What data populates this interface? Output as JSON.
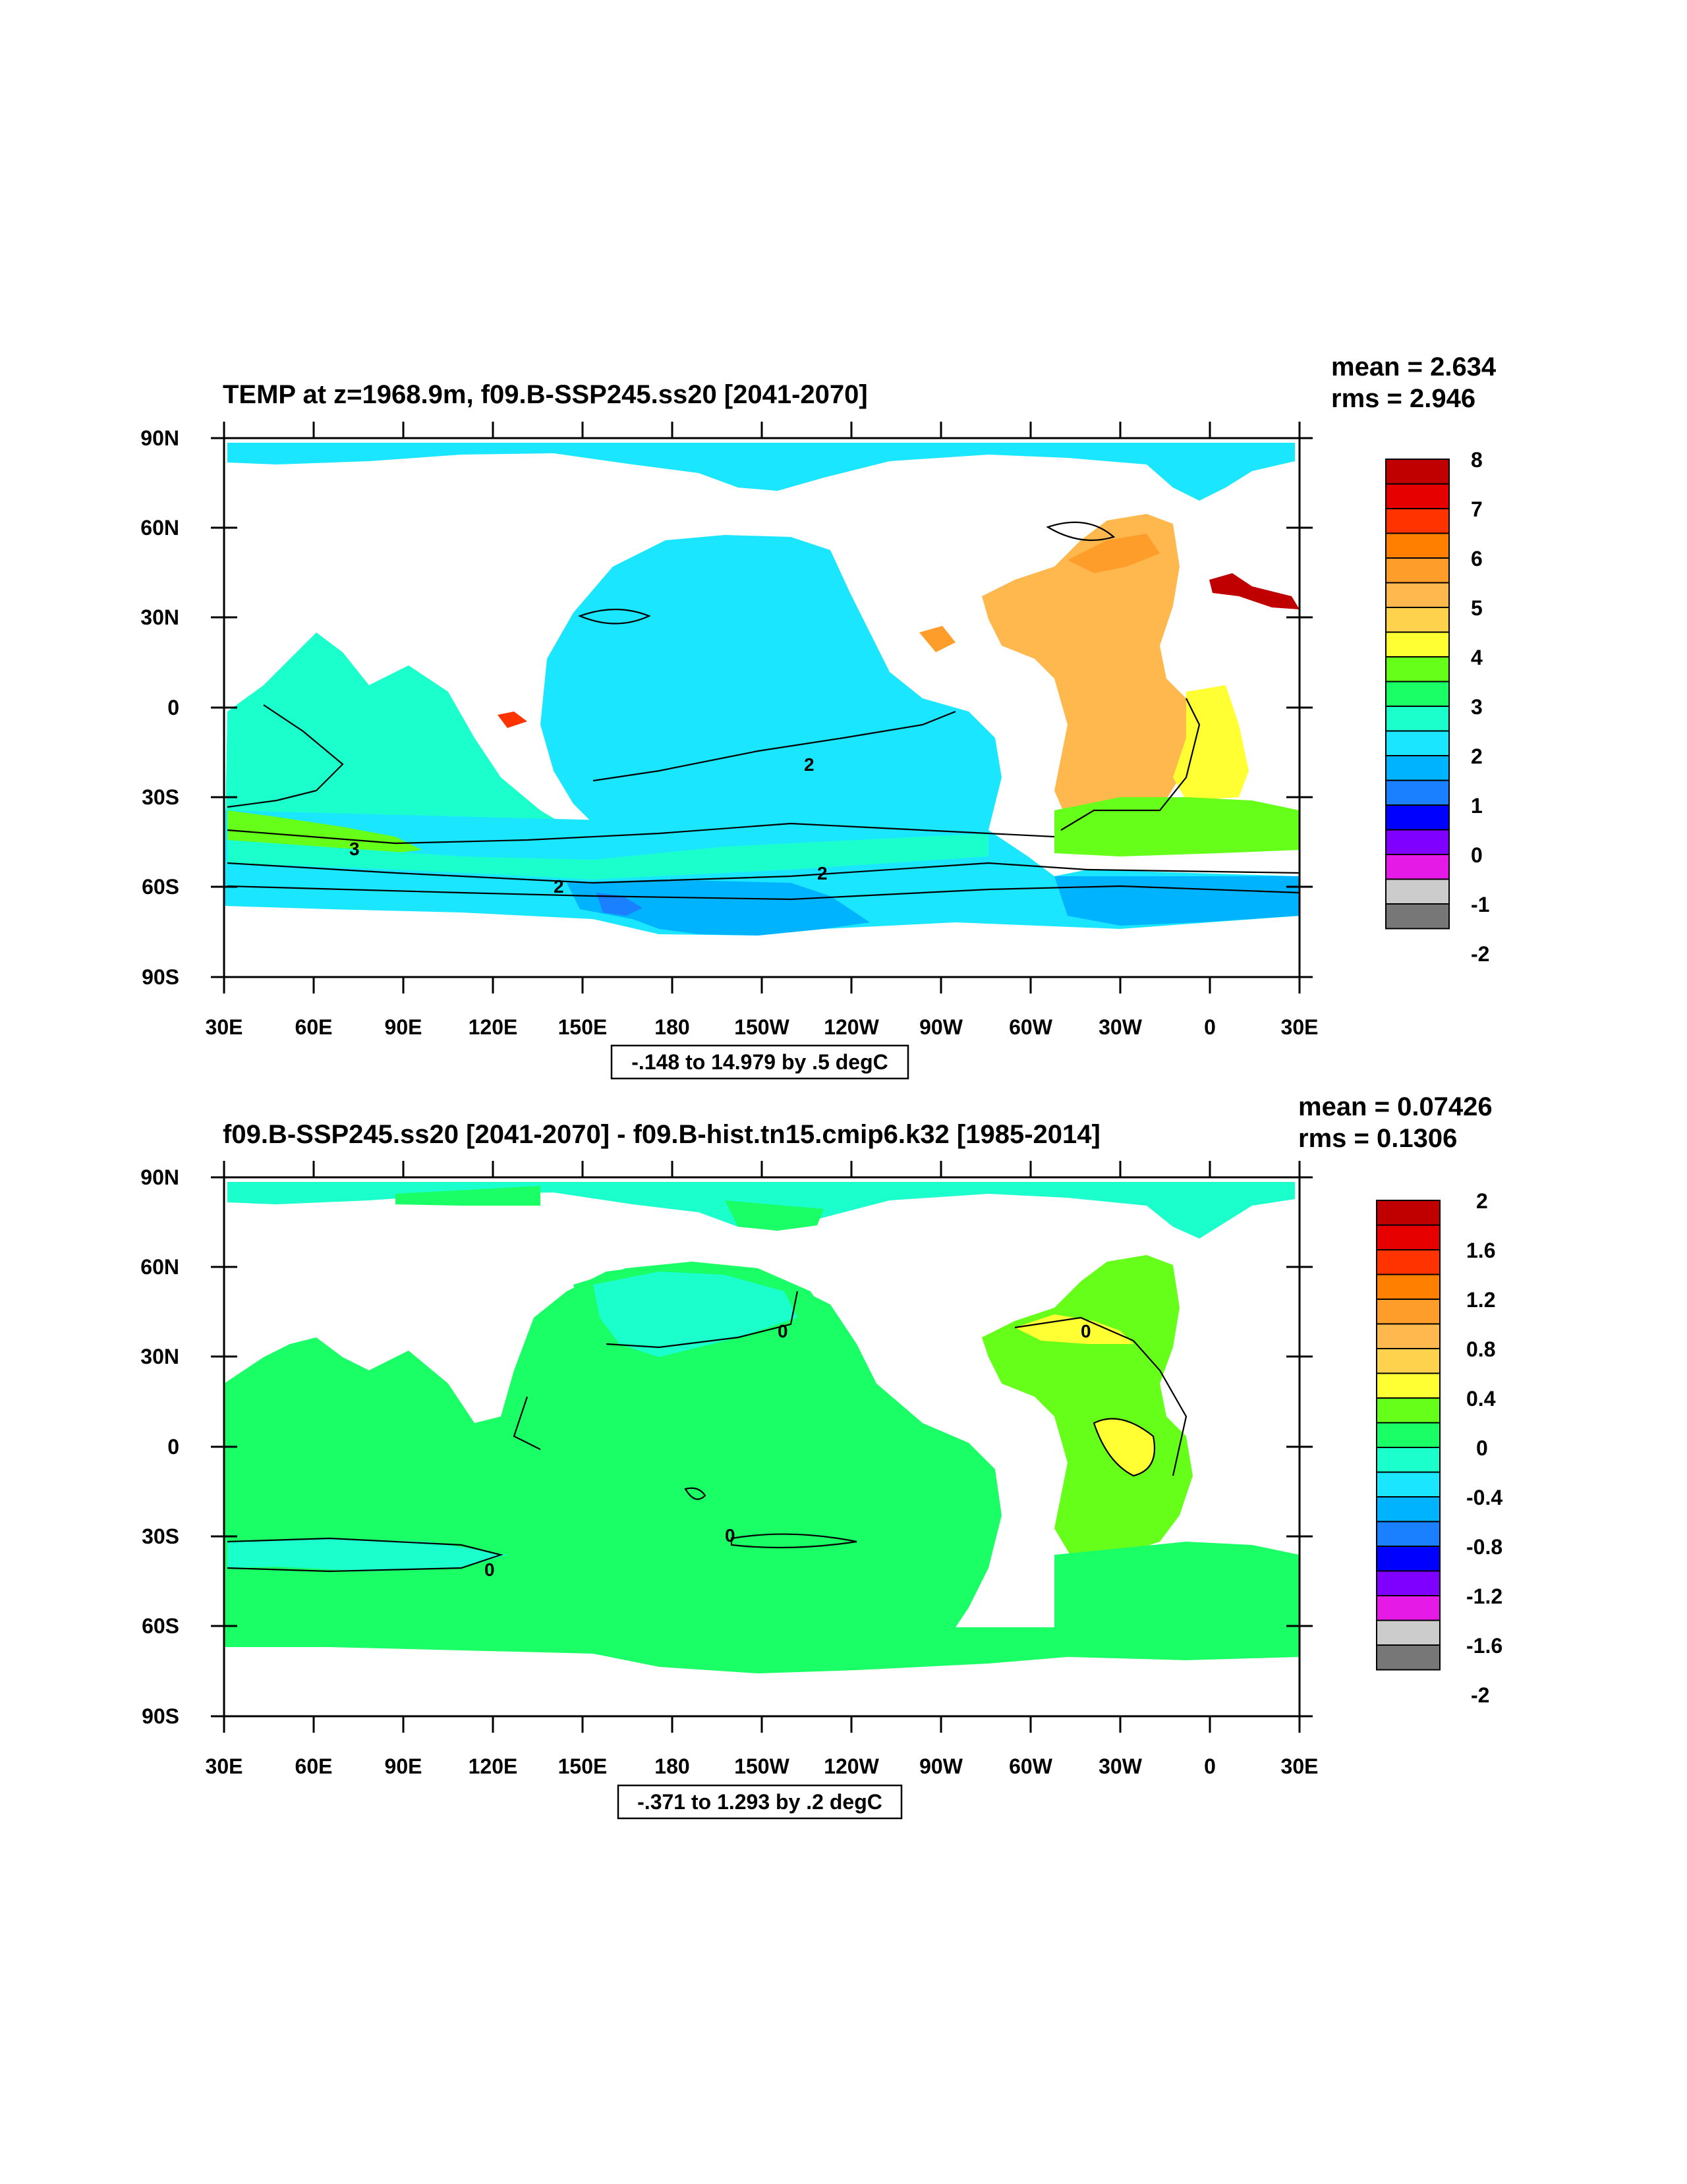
{
  "panels": [
    {
      "title": "TEMP at z=1968.9m, f09.B-SSP245.ss20 [2041-2070]",
      "mean_label": "mean = 2.634",
      "rms_label": "rms = 2.946",
      "range_label": "-.148 to 14.979 by .5 degC",
      "lat_labels": [
        "90N",
        "60N",
        "30N",
        "0",
        "30S",
        "60S",
        "90S"
      ],
      "lon_labels": [
        "30E",
        "60E",
        "90E",
        "120E",
        "150E",
        "180",
        "150W",
        "120W",
        "90W",
        "60W",
        "30W",
        "0",
        "30E"
      ],
      "colorbar_labels": [
        "8",
        "7",
        "6",
        "5",
        "4",
        "3",
        "2",
        "1",
        "0",
        "-1",
        "-2"
      ],
      "contour_labels": [
        "2",
        "2",
        "2",
        "3"
      ],
      "colors": [
        "#c00000",
        "#e60000",
        "#ff3300",
        "#ff8000",
        "#ff9d2a",
        "#ffb84d",
        "#ffd24d",
        "#ffff33",
        "#66ff1a",
        "#1aff66",
        "#1affcc",
        "#1ae6ff",
        "#00b3ff",
        "#1a80ff",
        "#0000ff",
        "#8000ff",
        "#e61ae6",
        "#cccccc",
        "#777777"
      ]
    },
    {
      "title": "f09.B-SSP245.ss20 [2041-2070] - f09.B-hist.tn15.cmip6.k32 [1985-2014]",
      "mean_label": "mean = 0.07426",
      "rms_label": "rms = 0.1306",
      "range_label": "-.371 to 1.293 by .2 degC",
      "lat_labels": [
        "90N",
        "60N",
        "30N",
        "0",
        "30S",
        "60S",
        "90S"
      ],
      "lon_labels": [
        "30E",
        "60E",
        "90E",
        "120E",
        "150E",
        "180",
        "150W",
        "120W",
        "90W",
        "60W",
        "30W",
        "0",
        "30E"
      ],
      "colorbar_labels": [
        "2",
        "1.6",
        "1.2",
        "0.8",
        "0.4",
        "0",
        "-0.4",
        "-0.8",
        "-1.2",
        "-1.6",
        "-2"
      ],
      "contour_labels": [
        "0",
        "0",
        "0",
        "0"
      ],
      "colors": [
        "#c00000",
        "#e60000",
        "#ff3300",
        "#ff8000",
        "#ff9d2a",
        "#ffb84d",
        "#ffd24d",
        "#ffff33",
        "#66ff1a",
        "#1aff66",
        "#1affcc",
        "#1ae6ff",
        "#00b3ff",
        "#1a80ff",
        "#0000ff",
        "#8000ff",
        "#e61ae6",
        "#cccccc",
        "#777777"
      ]
    }
  ]
}
